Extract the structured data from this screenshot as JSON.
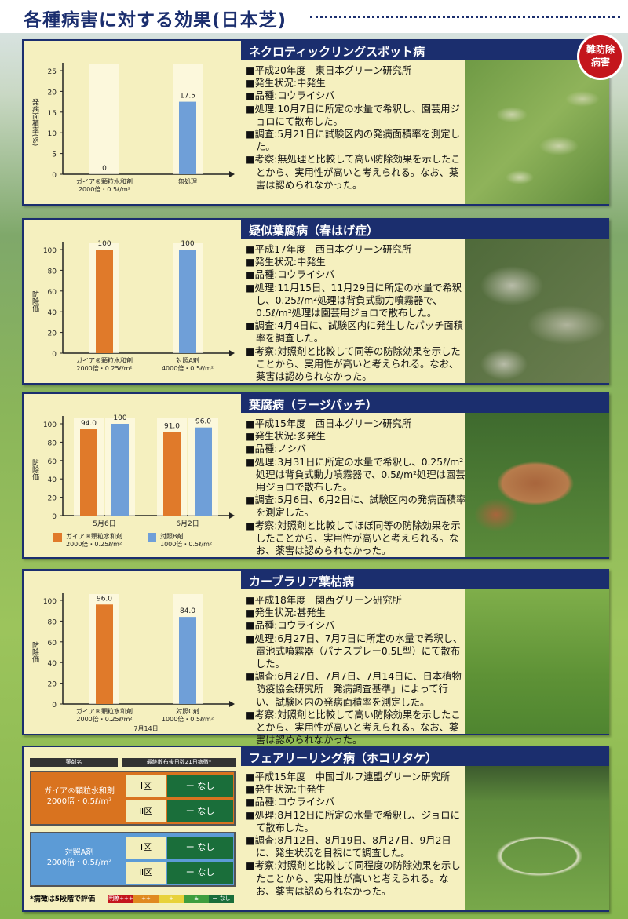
{
  "title": "各種病害に対する効果(日本芝)",
  "badge": {
    "line1": "難防除",
    "line2": "病害"
  },
  "colors": {
    "navy": "#1b2e6e",
    "orange": "#e07a2a",
    "blue": "#6f9fd8"
  },
  "panels": [
    {
      "heading": "ネクロティックリングスポット病",
      "lines": [
        "平成20年度　東日本グリーン研究所",
        "発生状況:中発生",
        "品種:コウライシバ",
        "処理:10月7日に所定の水量で希釈し、園芸用ジョロにて散布した。",
        "調査:5月21日に試験区内の発病面積率を測定した。",
        "考察:無処理と比較して高い防除効果を示したことから、実用性が高いと考えられる。なお、薬害は認められなかった。"
      ],
      "photo": "patchy-turf"
    },
    {
      "heading": "疑似葉腐病（春はげ症）",
      "lines": [
        "平成17年度　西日本グリーン研究所",
        "発生状況:中発生",
        "品種:コウライシバ",
        "処理:11月15日、11月29日に所定の水量で希釈し、0.25ℓ/m²処理は背負式動力噴霧器で、0.5ℓ/m²処理は園芸用ジョロで散布した。",
        "調査:4月4日に、試験区内に発生したパッチ面積率を調査した。",
        "考察:対照剤と比較して同等の防除効果を示したことから、実用性が高いと考えられる。なお、薬害は認められなかった。"
      ],
      "photo": "spring-dead-spot"
    },
    {
      "heading": "葉腐病（ラージパッチ）",
      "lines": [
        "平成15年度　西日本グリーン研究所",
        "発生状況:多発生",
        "品種:ノシバ",
        "処理:3月31日に所定の水量で希釈し、0.25ℓ/m²処理は背負式動力噴霧器で、0.5ℓ/m²処理は園芸用ジョロで散布した。",
        "調査:5月6日、6月2日に、試験区内の発病面積率を測定した。",
        "考察:対照剤と比較してほぼ同等の防除効果を示したことから、実用性が高いと考えられる。なお、薬害は認められなかった。"
      ],
      "photo": "large-patch"
    },
    {
      "heading": "カーブラリア葉枯病",
      "lines": [
        "平成18年度　関西グリーン研究所",
        "発生状況:甚発生",
        "品種:コウライシバ",
        "処理:6月27日、7月7日に所定の水量で希釈し、電池式噴霧器（パナスプレー0.5L型）にて散布した。",
        "調査:6月27日、7月7日、7月14日に、日本植物防疫協会研究所「発病調査基準」によって行い、試験区内の発病面積率を測定した。",
        "考察:対照剤と比較して高い防除効果を示したことから、実用性が高いと考えられる。なお、薬害は認められなかった。"
      ],
      "photo": "healthy-turf"
    },
    {
      "heading": "フェアリーリング病（ホコリタケ）",
      "lines": [
        "平成15年度　中国ゴルフ連盟グリーン研究所",
        "発生状況:中発生",
        "品種:コウライシバ",
        "処理:8月12日に所定の水量で希釈し、ジョロにて散布した。",
        "調査:8月12日、8月19日、8月27日、9月2日に、発生状況を目視にて調査した。",
        "考察:対照剤と比較して同程度の防除効果を示したことから、実用性が高いと考えられる。なお、薬害は認められなかった。"
      ],
      "photo": "fairy-ring"
    }
  ],
  "chart_data": [
    {
      "type": "bar",
      "ylabel": "発病面積率(%)",
      "ylim": [
        0,
        25
      ],
      "yticks": [
        0,
        5,
        10,
        15,
        20,
        25
      ],
      "categories": [
        "ガイア®顆粒水和剤\n2000倍・0.5ℓ/m²",
        "無処理"
      ],
      "values": [
        0,
        17.5
      ],
      "labels": [
        "0",
        "17.5"
      ],
      "colors": [
        "#e07a2a",
        "#6f9fd8"
      ]
    },
    {
      "type": "bar",
      "ylabel": "防除価",
      "ylim": [
        0,
        100
      ],
      "yticks": [
        0,
        20,
        40,
        60,
        80,
        100
      ],
      "categories": [
        "ガイア®顆粒水和剤\n2000倍・0.25ℓ/m²",
        "対照A剤\n4000倍・0.5ℓ/m²"
      ],
      "values": [
        100,
        100
      ],
      "labels": [
        "100",
        "100"
      ],
      "colors": [
        "#e07a2a",
        "#6f9fd8"
      ]
    },
    {
      "type": "bar",
      "ylabel": "防除価",
      "ylim": [
        0,
        100
      ],
      "yticks": [
        0,
        20,
        40,
        60,
        80,
        100
      ],
      "categories": [
        "5月6日",
        "6月2日"
      ],
      "series": [
        {
          "name": "ガイア®顆粒水和剤\n2000倍・0.25ℓ/m²",
          "values": [
            94.0,
            91.0
          ],
          "labels": [
            "94.0",
            "91.0"
          ],
          "color": "#e07a2a"
        },
        {
          "name": "対照B剤\n1000倍・0.5ℓ/m²",
          "values": [
            100,
            96.0
          ],
          "labels": [
            "100",
            "96.0"
          ],
          "color": "#6f9fd8"
        }
      ]
    },
    {
      "type": "bar",
      "ylabel": "防除価",
      "xlabel": "7月14日",
      "ylim": [
        0,
        100
      ],
      "yticks": [
        0,
        20,
        40,
        60,
        80,
        100
      ],
      "categories": [
        "ガイア®顆粒水和剤\n2000倍・0.25ℓ/m²",
        "対照C剤\n1000倍・0.5ℓ/m²"
      ],
      "values": [
        96.0,
        84.0
      ],
      "labels": [
        "96.0",
        "84.0"
      ],
      "colors": [
        "#e07a2a",
        "#6f9fd8"
      ]
    }
  ],
  "table": {
    "head": [
      "薬剤名",
      "最終散布後日数21日病徴*"
    ],
    "groups": [
      {
        "drug": "ガイア®顆粒水和剤\n2000倍・0.5ℓ/m²",
        "color": "#d9731f",
        "rows": [
          {
            "ku": "Ⅰ区",
            "res": "ー なし"
          },
          {
            "ku": "Ⅱ区",
            "res": "ー なし"
          }
        ]
      },
      {
        "drug": "対照A剤\n2000倍・0.5ℓ/m²",
        "color": "#5c9bd6",
        "rows": [
          {
            "ku": "Ⅰ区",
            "res": "ー なし"
          },
          {
            "ku": "Ⅱ区",
            "res": "ー なし"
          }
        ]
      }
    ],
    "note": "*病徴は5段階で評価",
    "scale": [
      {
        "label": "明瞭+++",
        "color": "#c4161c"
      },
      {
        "label": "++",
        "color": "#e08a20"
      },
      {
        "label": "+",
        "color": "#e8d23a"
      },
      {
        "label": "±",
        "color": "#3e9e3e"
      },
      {
        "label": "ー なし",
        "color": "#1a6e3a"
      }
    ]
  }
}
